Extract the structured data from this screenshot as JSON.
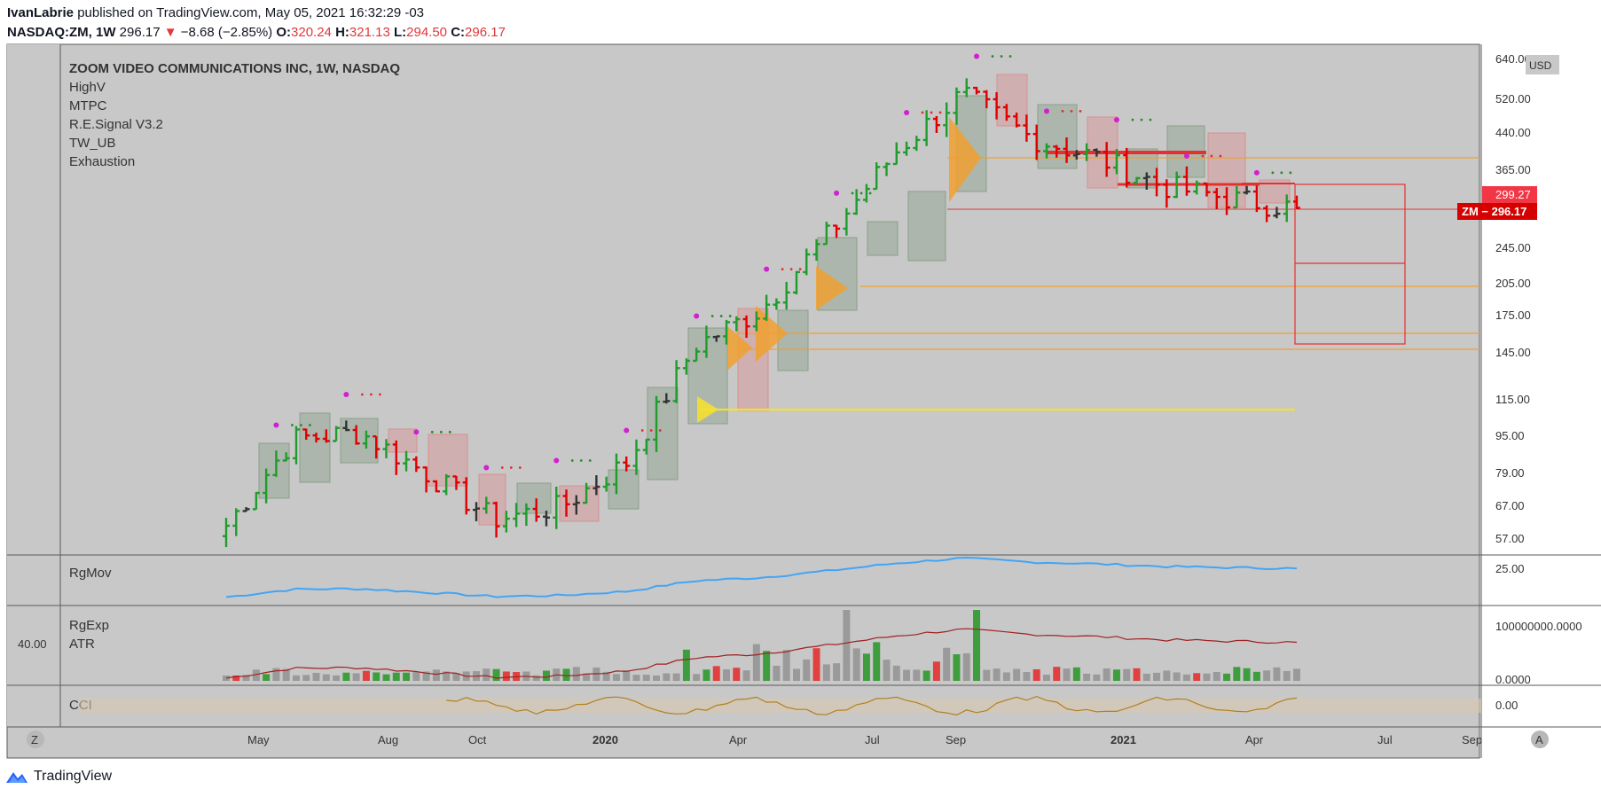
{
  "header": {
    "author": "IvanLabrie",
    "published_text": "published on TradingView.com, May 05, 2021 16:32:29 -03",
    "symbol_interval": "NASDAQ:ZM, 1W",
    "last_price": "296.17",
    "change_arrow": "▼",
    "change": "−8.68 (−2.85%)",
    "open_label": "O:",
    "open": "320.24",
    "high_label": "H:",
    "high": "321.13",
    "low_label": "L:",
    "low": "294.50",
    "close_label": "C:",
    "close": "296.17"
  },
  "legend": {
    "title": "ZOOM VIDEO COMMUNICATIONS INC, 1W, NASDAQ",
    "indicators": [
      "HighV",
      "MTPC",
      "R.E.Signal V3.2",
      "TW_UB",
      "Exhaustion"
    ]
  },
  "panes": {
    "rgmov": {
      "label": "RgMov",
      "tick": "25.00"
    },
    "rgexp": {
      "label1": "RgExp",
      "label2": "ATR",
      "left_value": "40.00",
      "tick_top": "100000000.0000",
      "tick_bottom": "0.0000"
    },
    "cci": {
      "label": "CCI",
      "tick": "0.00"
    }
  },
  "price_axis": {
    "currency": "USD",
    "ticks": [
      "640.00",
      "520.00",
      "440.00",
      "365.00",
      "299.27",
      "245.00",
      "205.00",
      "175.00",
      "145.00",
      "115.00",
      "95.00",
      "79.00",
      "67.00",
      "57.00"
    ],
    "tick_labels": [
      "640.00",
      "520.00",
      "440.00",
      "365.00",
      "245.00",
      "205.00",
      "175.00",
      "145.00",
      "115.00",
      "95.00",
      "79.00",
      "67.00",
      "57.00"
    ],
    "badge_prev": "299.27",
    "badge_last": "ZM − 296.17"
  },
  "time_axis": {
    "labels": [
      {
        "text": "May",
        "bold": false
      },
      {
        "text": "Aug",
        "bold": false
      },
      {
        "text": "Oct",
        "bold": false
      },
      {
        "text": "2020",
        "bold": true
      },
      {
        "text": "Apr",
        "bold": false
      },
      {
        "text": "Jul",
        "bold": false
      },
      {
        "text": "Sep",
        "bold": false
      },
      {
        "text": "2021",
        "bold": true
      },
      {
        "text": "Apr",
        "bold": false
      },
      {
        "text": "Jul",
        "bold": false
      },
      {
        "text": "Sep",
        "bold": false
      }
    ],
    "left_button": "Z",
    "right_button": "A"
  },
  "chart_data": {
    "type": "bar",
    "title": "ZOOM VIDEO COMMUNICATIONS INC, 1W, NASDAQ",
    "symbol": "NASDAQ:ZM",
    "interval": "1W",
    "scale": "log",
    "ylim": [
      53,
      680
    ],
    "x": [
      "2019-04-15",
      "2019-06-03",
      "2019-07-22",
      "2019-09-09",
      "2019-10-28",
      "2019-12-16",
      "2020-02-03",
      "2020-03-23",
      "2020-05-11",
      "2020-06-29",
      "2020-08-17",
      "2020-10-05",
      "2020-11-23",
      "2021-01-11",
      "2021-03-01",
      "2021-04-19",
      "2021-05-03"
    ],
    "close_path": [
      62,
      95,
      98,
      80,
      64,
      68,
      85,
      150,
      180,
      260,
      390,
      520,
      420,
      380,
      330,
      310,
      296.17
    ],
    "levels": [
      {
        "price": 385,
        "color": "#f0a030"
      },
      {
        "price": 205,
        "color": "#f0a030"
      },
      {
        "price": 160,
        "color": "#f0a030"
      },
      {
        "price": 148,
        "color": "#f0a030"
      },
      {
        "price": 110,
        "color": "#f5e030"
      },
      {
        "price": 296.17,
        "color": "#e0383b"
      }
    ],
    "projection_box": {
      "top": 330,
      "mid": 228,
      "bottom": 153
    },
    "grid": false,
    "up_color": "#1f9c2c",
    "down_color": "#e00000",
    "neutral_color": "#333333"
  }
}
